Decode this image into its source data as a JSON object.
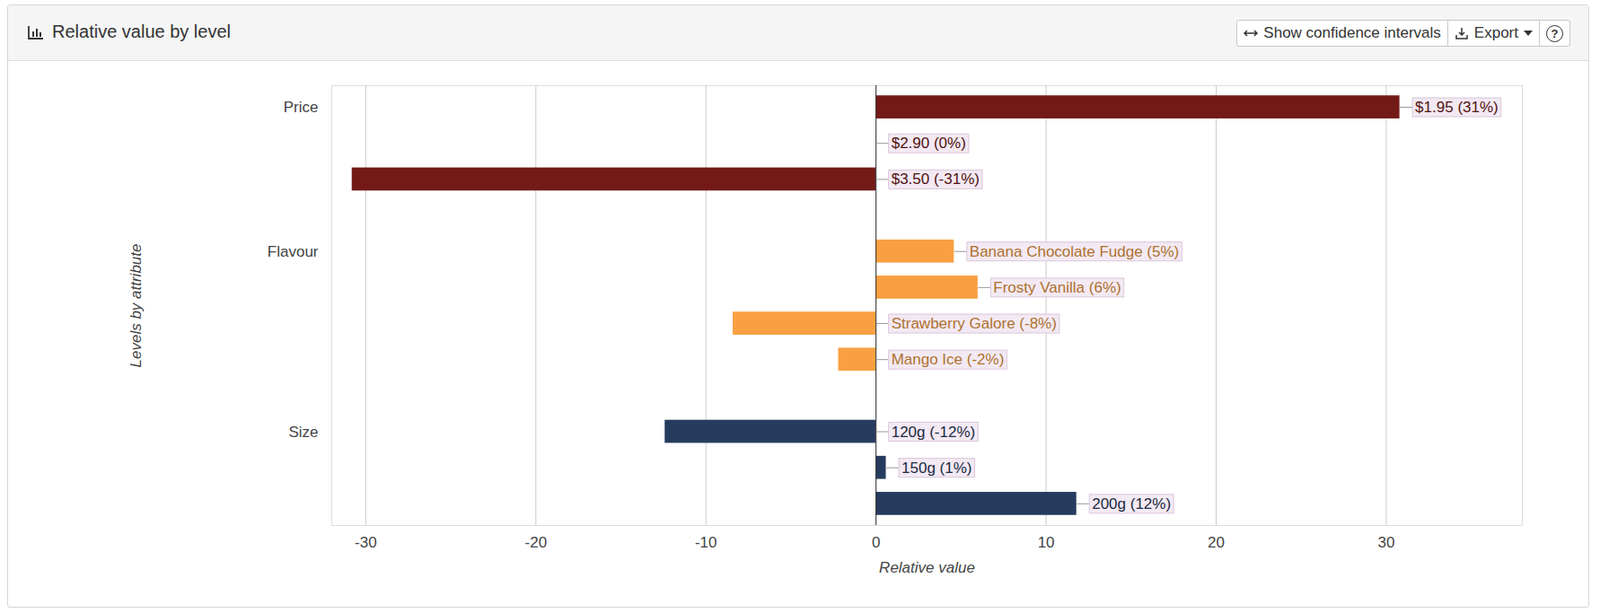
{
  "chart_data": {
    "type": "bar",
    "title": "Relative value by level",
    "buttons": [
      "Show confidence intervals",
      "Export",
      "?"
    ],
    "orientation": "horizontal",
    "categories": [
      "Price",
      null,
      null,
      "Flavour",
      null,
      null,
      null,
      "Size",
      null,
      null
    ],
    "values": [
      30.8,
      0,
      -30.8,
      4.6,
      6,
      -8.4,
      -2.2,
      -12.4,
      0.6,
      11.8
    ],
    "value_labels": [
      "$1.95 (31%)",
      "$2.90 (0%)",
      "$3.50 (-31%)",
      "Banana Chocolate Fudge (5%)",
      "Frosty Vanilla (6%)",
      "Strawberry Galore (-8%)",
      "Mango Ice (-2%)",
      "120g (-12%)",
      "150g (1%)",
      "200g (12%)"
    ],
    "colors": [
      "#731a17",
      "#731a17",
      "#731a17",
      "#f9a142",
      "#f9a142",
      "#f9a142",
      "#f9a142",
      "#263c5e",
      "#263c5e",
      "#263c5e"
    ],
    "data_labels": true,
    "x_label": "Relative value",
    "y_label": "Levels by attribute",
    "xlim": [
      -32,
      38
    ],
    "xticks": [
      -30,
      -20,
      -10,
      0,
      10,
      20,
      30
    ],
    "grid": true
  }
}
